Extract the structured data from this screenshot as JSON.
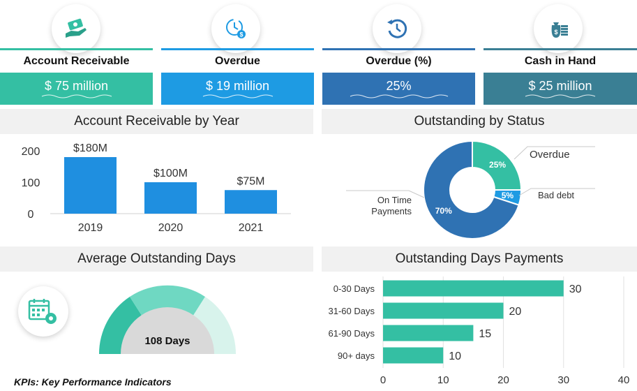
{
  "kpis": [
    {
      "label": "Account Receivable",
      "value": "$ 75 million",
      "icon": "money-hand-icon",
      "color": "#34bfa3"
    },
    {
      "label": "Overdue",
      "value": "$ 19 million",
      "icon": "clock-dollar-icon",
      "color": "#1e9be3"
    },
    {
      "label": "Overdue (%)",
      "value": "25%",
      "icon": "history-icon",
      "color": "#2f72b3"
    },
    {
      "label": "Cash in Hand",
      "value": "$ 25 million",
      "icon": "cash-bag-icon",
      "color": "#3a7f94"
    }
  ],
  "sections": {
    "ar_by_year": "Account Receivable by Year",
    "outstanding_by_status": "Outstanding by Status",
    "avg_outstanding_days": "Average Outstanding Days",
    "outstanding_days_payments": "Outstanding Days Payments"
  },
  "gauge": {
    "value_label": "108 Days"
  },
  "footer": "KPIs: Key Performance Indicators",
  "colors": {
    "teal": "#34bfa3",
    "blue": "#1e9be3",
    "navy": "#2f72b3",
    "slate": "#3a7f94",
    "bar_blue": "#1f8fe0"
  },
  "chart_data": [
    {
      "type": "bar",
      "title": "Account Receivable by Year",
      "categories": [
        "2019",
        "2020",
        "2021"
      ],
      "values": [
        180,
        100,
        75
      ],
      "data_labels": [
        "$180M",
        "$100M",
        "$75M"
      ],
      "yticks": [
        "0",
        "100",
        "200"
      ],
      "ylim": [
        0,
        200
      ]
    },
    {
      "type": "pie",
      "subtype": "donut",
      "title": "Outstanding by Status",
      "slices": [
        {
          "name": "Overdue",
          "value": 25,
          "label": "25%",
          "color": "#34bfa3"
        },
        {
          "name": "Bad debt",
          "value": 5,
          "label": "5%",
          "color": "#1e9be3"
        },
        {
          "name": "On Time Payments",
          "value": 70,
          "label": "70%",
          "color": "#2f72b3"
        }
      ],
      "legend": {
        "overdue": "Overdue",
        "bad_debt": "Bad debt",
        "on_time_line1": "On Time",
        "on_time_line2": "Payments"
      }
    },
    {
      "type": "bar",
      "orientation": "horizontal",
      "title": "Outstanding Days Payments",
      "categories": [
        "0-30 Days",
        "31-60 Days",
        "61-90 Days",
        "90+ days"
      ],
      "values": [
        30,
        20,
        15,
        10
      ],
      "data_labels": [
        "30",
        "20",
        "15",
        "10"
      ],
      "xticks": [
        "0",
        "10",
        "20",
        "30",
        "40"
      ],
      "xlim": [
        0,
        40
      ]
    }
  ]
}
